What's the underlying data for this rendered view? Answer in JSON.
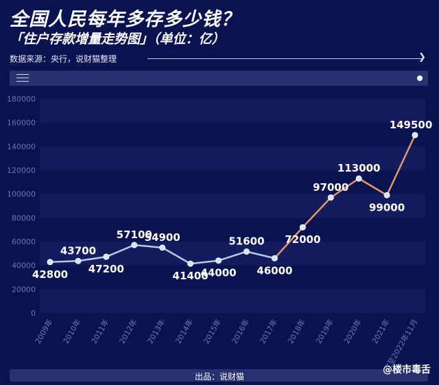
{
  "header": {
    "title": "全国人民每年多存多少钱？",
    "subtitle": "「住户存款增量走势图」（单位：亿）",
    "source": "数据来源：央行，说财猫整理"
  },
  "footer": {
    "credit": "出品：说财猫",
    "watermark": "@楼市毒舌"
  },
  "colors": {
    "background": "#0b1250",
    "band": "#151c5e",
    "line_early": "#b9cce6",
    "line_late": "#e39a6a",
    "point": "#d3e4f5"
  },
  "chart_data": {
    "type": "line",
    "categories": [
      "2009年",
      "2010年",
      "2011年",
      "2012年",
      "2013年",
      "2014年",
      "2015年",
      "2016年",
      "2017年",
      "2018年",
      "2019年",
      "2020年",
      "2021年",
      "截至2022年11月"
    ],
    "values": [
      42800,
      43700,
      47200,
      57100,
      54900,
      41400,
      44000,
      51600,
      46000,
      72000,
      97000,
      113000,
      99000,
      149500
    ],
    "data_labels": [
      "42800",
      "43700",
      "47200",
      "57100",
      "54900",
      "41400",
      "44000",
      "51600",
      "46000",
      "72000",
      "97000",
      "113000",
      "99000",
      "149500"
    ],
    "label_positions": [
      "below",
      "above",
      "below",
      "above",
      "above",
      "below",
      "below",
      "above",
      "below",
      "below",
      "above",
      "above",
      "below",
      "above"
    ],
    "ylim": [
      0,
      180000
    ],
    "yticks": [
      "0",
      "20000",
      "40000",
      "60000",
      "80000",
      "100000",
      "120000",
      "140000",
      "160000",
      "180000"
    ],
    "grid": "bands",
    "legend": "none",
    "highlight_from_index": 8
  }
}
